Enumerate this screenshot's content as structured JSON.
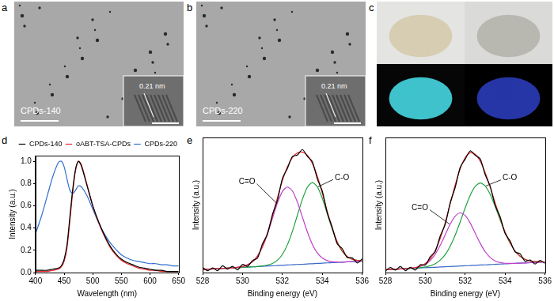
{
  "images": [
    {
      "panel": "a",
      "label": "CPDs-140",
      "lattice": "0.21 nm"
    },
    {
      "panel": "b",
      "label": "CPDs-220",
      "lattice": "0.21 nm"
    },
    {
      "panel": "c"
    }
  ],
  "chart_data": [
    {
      "panel": "d",
      "type": "line",
      "x_label": "Wavelength (nm)",
      "y_label": "Intensity (a.u.)",
      "x": [
        400,
        410,
        420,
        430,
        440,
        445,
        450,
        455,
        460,
        465,
        470,
        475,
        480,
        490,
        500,
        510,
        520,
        530,
        540,
        550,
        560,
        570,
        580,
        590,
        600,
        610,
        620,
        630,
        640,
        650
      ],
      "series": [
        {
          "name": "CPDs-140",
          "color": "#000000",
          "values": [
            0.02,
            0.02,
            0.02,
            0.03,
            0.04,
            0.06,
            0.12,
            0.25,
            0.5,
            0.75,
            0.93,
            1.0,
            0.96,
            0.78,
            0.6,
            0.46,
            0.34,
            0.24,
            0.17,
            0.12,
            0.09,
            0.07,
            0.05,
            0.04,
            0.03,
            0.02,
            0.02,
            0.01,
            0.01,
            0.01
          ]
        },
        {
          "name": "oABT-TSA-CPDs",
          "color": "#e8262a",
          "values": [
            0.01,
            0.01,
            0.01,
            0.02,
            0.03,
            0.05,
            0.1,
            0.22,
            0.46,
            0.72,
            0.92,
            1.0,
            0.97,
            0.79,
            0.6,
            0.45,
            0.33,
            0.23,
            0.16,
            0.11,
            0.08,
            0.06,
            0.04,
            0.03,
            0.02,
            0.02,
            0.01,
            0.01,
            0.01,
            0.01
          ]
        },
        {
          "name": "CPDs-220",
          "color": "#2f6fd0",
          "values": [
            0.35,
            0.5,
            0.68,
            0.86,
            0.99,
            1.0,
            0.95,
            0.84,
            0.74,
            0.71,
            0.74,
            0.78,
            0.77,
            0.69,
            0.57,
            0.45,
            0.35,
            0.27,
            0.21,
            0.16,
            0.13,
            0.11,
            0.1,
            0.09,
            0.08,
            0.08,
            0.07,
            0.07,
            0.06,
            0.06
          ]
        }
      ],
      "xlim": [
        400,
        650
      ],
      "xticks": [
        400,
        450,
        500,
        550,
        600,
        650
      ],
      "ylim": [
        0,
        1.05
      ],
      "yticks": [
        {
          "value": 0,
          "label": "0.0"
        },
        0.2,
        0.4,
        0.6,
        0.8,
        {
          "value": 1,
          "label": "1.0"
        }
      ],
      "grid": false,
      "legend": "upper right"
    },
    {
      "panel": "e",
      "type": "line",
      "x_label": "Binding energy (eV)",
      "y_label": "Intensity (a.u.)",
      "x": [
        528,
        528.25,
        528.5,
        528.75,
        529,
        529.25,
        529.5,
        529.75,
        530,
        530.25,
        530.5,
        530.75,
        531,
        531.25,
        531.5,
        531.75,
        532,
        532.25,
        532.5,
        532.75,
        533,
        533.25,
        533.5,
        533.75,
        534,
        534.25,
        534.5,
        534.75,
        535,
        535.25,
        535.5,
        535.75,
        536
      ],
      "series": [
        {
          "color": "#000000",
          "values": [
            0.05,
            0.018,
            0.045,
            0.018,
            0.065,
            0.033,
            0.06,
            0.026,
            0.078,
            0.06,
            0.115,
            0.139,
            0.275,
            0.37,
            0.558,
            0.694,
            0.905,
            1.002,
            1.116,
            1.131,
            1.184,
            1.119,
            1.067,
            0.902,
            0.784,
            0.573,
            0.434,
            0.275,
            0.23,
            0.144,
            0.143,
            0.092,
            0.133
          ]
        },
        {
          "color": "#e8262a",
          "values": [
            0.03,
            0.033,
            0.035,
            0.038,
            0.04,
            0.043,
            0.045,
            0.051,
            0.058,
            0.075,
            0.105,
            0.159,
            0.25,
            0.38,
            0.543,
            0.719,
            0.885,
            1.017,
            1.106,
            1.151,
            1.159,
            1.129,
            1.052,
            0.927,
            0.764,
            0.588,
            0.424,
            0.295,
            0.205,
            0.154,
            0.128,
            0.117,
            0.113
          ]
        },
        {
          "name": "C=O",
          "color": "#c040c8",
          "values": [
            0.03,
            0.033,
            0.035,
            0.038,
            0.04,
            0.043,
            0.045,
            0.051,
            0.058,
            0.075,
            0.105,
            0.159,
            0.247,
            0.371,
            0.52,
            0.668,
            0.78,
            0.823,
            0.785,
            0.678,
            0.535,
            0.391,
            0.272,
            0.189,
            0.14,
            0.115,
            0.103,
            0.101,
            0.1,
            0.103,
            0.105,
            0.108,
            0.11
          ]
        },
        {
          "name": "C-O",
          "color": "#1fa040",
          "values": [
            0.03,
            0.033,
            0.035,
            0.038,
            0.04,
            0.043,
            0.045,
            0.048,
            0.05,
            0.053,
            0.055,
            0.058,
            0.063,
            0.072,
            0.088,
            0.119,
            0.175,
            0.267,
            0.396,
            0.551,
            0.704,
            0.821,
            0.865,
            0.826,
            0.714,
            0.566,
            0.416,
            0.292,
            0.205,
            0.154,
            0.128,
            0.117,
            0.113
          ]
        },
        {
          "color": "#3a68c8",
          "values": [
            0.03,
            0.033,
            0.035,
            0.038,
            0.04,
            0.043,
            0.045,
            0.048,
            0.05,
            0.053,
            0.055,
            0.058,
            0.06,
            0.063,
            0.065,
            0.068,
            0.07,
            0.073,
            0.075,
            0.078,
            0.08,
            0.083,
            0.085,
            0.088,
            0.09,
            0.093,
            0.095,
            0.098,
            0.1,
            0.103,
            0.105,
            0.108,
            0.11
          ]
        }
      ],
      "xlim": [
        528,
        536
      ],
      "xticks": [
        528,
        530,
        532,
        534,
        536
      ],
      "ylim": [
        0,
        1.3
      ],
      "tick_labels": "x",
      "grid": false
    },
    {
      "panel": "f",
      "type": "line",
      "x_label": "Binding energy (eV)",
      "y_label": "Intensity (a.u.)",
      "x": [
        528,
        528.25,
        528.5,
        528.75,
        529,
        529.25,
        529.5,
        529.75,
        530,
        530.25,
        530.5,
        530.75,
        531,
        531.25,
        531.5,
        531.75,
        532,
        532.25,
        532.5,
        532.75,
        533,
        533.25,
        533.5,
        533.75,
        534,
        534.25,
        534.5,
        534.75,
        535,
        535.25,
        535.5,
        535.75,
        536
      ],
      "series": [
        {
          "color": "#000000",
          "values": [
            0.015,
            0.053,
            0.025,
            0.063,
            0.02,
            0.055,
            0.026,
            0.082,
            0.079,
            0.165,
            0.219,
            0.381,
            0.501,
            0.725,
            0.884,
            1.091,
            1.176,
            1.261,
            1.216,
            1.179,
            1.015,
            0.895,
            0.697,
            0.577,
            0.405,
            0.327,
            0.213,
            0.195,
            0.117,
            0.131,
            0.088,
            0.126,
            0.095
          ]
        },
        {
          "color": "#e8262a",
          "values": [
            0.03,
            0.033,
            0.035,
            0.038,
            0.04,
            0.045,
            0.051,
            0.067,
            0.094,
            0.145,
            0.229,
            0.356,
            0.521,
            0.715,
            0.909,
            1.076,
            1.191,
            1.241,
            1.226,
            1.154,
            1.035,
            0.885,
            0.722,
            0.562,
            0.42,
            0.307,
            0.223,
            0.17,
            0.137,
            0.121,
            0.113,
            0.111,
            0.11
          ]
        },
        {
          "name": "C=O",
          "color": "#c040c8",
          "values": [
            0.03,
            0.033,
            0.035,
            0.038,
            0.04,
            0.045,
            0.051,
            0.064,
            0.086,
            0.127,
            0.192,
            0.284,
            0.393,
            0.503,
            0.585,
            0.618,
            0.59,
            0.513,
            0.408,
            0.304,
            0.217,
            0.157,
            0.121,
            0.104,
            0.096,
            0.095,
            0.095,
            0.098,
            0.1,
            0.103,
            0.105,
            0.108,
            0.11
          ]
        },
        {
          "name": "C-O",
          "color": "#1fa040",
          "values": [
            0.03,
            0.033,
            0.035,
            0.038,
            0.04,
            0.043,
            0.045,
            0.051,
            0.058,
            0.071,
            0.092,
            0.13,
            0.188,
            0.275,
            0.389,
            0.526,
            0.671,
            0.801,
            0.893,
            0.928,
            0.898,
            0.811,
            0.686,
            0.546,
            0.414,
            0.305,
            0.223,
            0.17,
            0.137,
            0.121,
            0.113,
            0.111,
            0.11
          ]
        },
        {
          "color": "#3a68c8",
          "values": [
            0.03,
            0.033,
            0.035,
            0.038,
            0.04,
            0.043,
            0.045,
            0.048,
            0.05,
            0.053,
            0.055,
            0.058,
            0.06,
            0.063,
            0.065,
            0.068,
            0.07,
            0.073,
            0.075,
            0.078,
            0.08,
            0.083,
            0.085,
            0.088,
            0.09,
            0.093,
            0.095,
            0.098,
            0.1,
            0.103,
            0.105,
            0.108,
            0.11
          ]
        }
      ],
      "xlim": [
        528,
        536
      ],
      "xticks": [
        528,
        530,
        532,
        534,
        536
      ],
      "ylim": [
        0,
        1.4
      ],
      "tick_labels": "x",
      "grid": false
    }
  ]
}
